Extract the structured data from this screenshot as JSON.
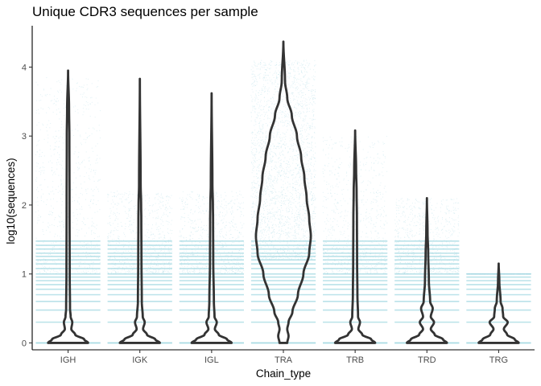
{
  "chart_data": {
    "type": "violin",
    "title": "Unique CDR3 sequences per sample",
    "xlabel": "Chain_type",
    "ylabel": "log10(sequences)",
    "categories": [
      "IGH",
      "IGK",
      "IGL",
      "TRA",
      "TRB",
      "TRD",
      "TRG"
    ],
    "ylim": [
      -0.1,
      4.6
    ],
    "yticks": [
      0,
      1,
      2,
      3,
      4
    ],
    "grid": false,
    "legend": "none",
    "colors": {
      "points": "#a3d8e2",
      "violin_outline": "#333333"
    },
    "violins": [
      {
        "category": "IGH",
        "y_max": 3.95,
        "jitter_max": 3.85,
        "profile": [
          [
            0,
            0.62
          ],
          [
            0.05,
            0.5
          ],
          [
            0.12,
            0.22
          ],
          [
            0.2,
            0.1
          ],
          [
            0.3,
            0.13
          ],
          [
            0.38,
            0.08
          ],
          [
            0.5,
            0.06
          ],
          [
            1,
            0.05
          ],
          [
            2,
            0.045
          ],
          [
            3,
            0.04
          ],
          [
            3.4,
            0.03
          ],
          [
            3.95,
            0
          ]
        ]
      },
      {
        "category": "IGK",
        "y_max": 3.83,
        "jitter_max": 2.2,
        "profile": [
          [
            0,
            0.62
          ],
          [
            0.05,
            0.48
          ],
          [
            0.12,
            0.22
          ],
          [
            0.2,
            0.1
          ],
          [
            0.3,
            0.15
          ],
          [
            0.38,
            0.09
          ],
          [
            0.6,
            0.06
          ],
          [
            1.2,
            0.05
          ],
          [
            1.8,
            0.045
          ],
          [
            2,
            0.04
          ],
          [
            2.3,
            0.025
          ],
          [
            3.83,
            0
          ]
        ]
      },
      {
        "category": "IGL",
        "y_max": 3.62,
        "jitter_max": 2.2,
        "profile": [
          [
            0,
            0.62
          ],
          [
            0.05,
            0.48
          ],
          [
            0.12,
            0.22
          ],
          [
            0.2,
            0.1
          ],
          [
            0.3,
            0.16
          ],
          [
            0.38,
            0.09
          ],
          [
            0.6,
            0.07
          ],
          [
            1.2,
            0.05
          ],
          [
            1.8,
            0.045
          ],
          [
            2,
            0.04
          ],
          [
            2.3,
            0.025
          ],
          [
            3.62,
            0
          ]
        ]
      },
      {
        "category": "TRA",
        "y_max": 4.37,
        "jitter_max": 4.1,
        "profile": [
          [
            0,
            0.12
          ],
          [
            0.1,
            0.16
          ],
          [
            0.2,
            0.12
          ],
          [
            0.3,
            0.16
          ],
          [
            0.45,
            0.28
          ],
          [
            0.7,
            0.45
          ],
          [
            1,
            0.62
          ],
          [
            1.3,
            0.8
          ],
          [
            1.55,
            0.85
          ],
          [
            1.8,
            0.8
          ],
          [
            2.1,
            0.72
          ],
          [
            2.4,
            0.65
          ],
          [
            2.7,
            0.55
          ],
          [
            3,
            0.42
          ],
          [
            3.3,
            0.26
          ],
          [
            3.55,
            0.12
          ],
          [
            3.8,
            0.05
          ],
          [
            4.37,
            0
          ]
        ]
      },
      {
        "category": "TRB",
        "y_max": 3.08,
        "jitter_max": 3.0,
        "profile": [
          [
            0,
            0.62
          ],
          [
            0.05,
            0.5
          ],
          [
            0.12,
            0.22
          ],
          [
            0.2,
            0.1
          ],
          [
            0.3,
            0.15
          ],
          [
            0.38,
            0.09
          ],
          [
            0.7,
            0.07
          ],
          [
            1.2,
            0.06
          ],
          [
            1.8,
            0.055
          ],
          [
            2.2,
            0.045
          ],
          [
            2.5,
            0.03
          ],
          [
            3.08,
            0
          ]
        ]
      },
      {
        "category": "TRD",
        "y_max": 2.1,
        "jitter_max": 2.1,
        "profile": [
          [
            0,
            0.62
          ],
          [
            0.05,
            0.5
          ],
          [
            0.12,
            0.24
          ],
          [
            0.2,
            0.12
          ],
          [
            0.3,
            0.22
          ],
          [
            0.38,
            0.12
          ],
          [
            0.5,
            0.18
          ],
          [
            0.6,
            0.1
          ],
          [
            0.9,
            0.06
          ],
          [
            1.3,
            0.04
          ],
          [
            1.6,
            0.02
          ],
          [
            2.1,
            0
          ]
        ]
      },
      {
        "category": "TRG",
        "y_max": 1.15,
        "jitter_max": 1.0,
        "profile": [
          [
            0,
            0.62
          ],
          [
            0.05,
            0.5
          ],
          [
            0.12,
            0.26
          ],
          [
            0.2,
            0.16
          ],
          [
            0.3,
            0.28
          ],
          [
            0.38,
            0.14
          ],
          [
            0.5,
            0.12
          ],
          [
            0.6,
            0.06
          ],
          [
            0.9,
            0.02
          ],
          [
            1.15,
            0
          ]
        ]
      }
    ]
  }
}
